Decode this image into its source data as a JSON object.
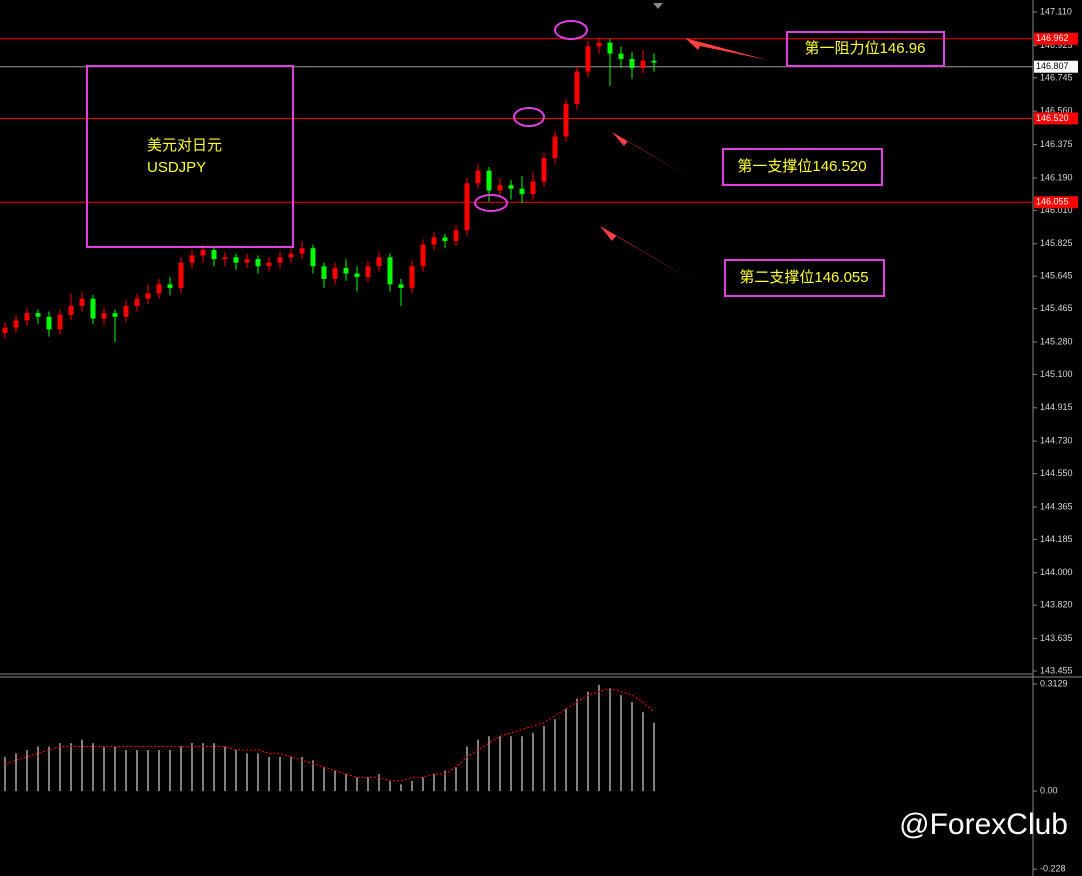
{
  "chart_data": [
    {
      "type": "candlestick",
      "open": [
        145.33,
        145.36,
        145.4,
        145.44,
        145.42,
        145.35,
        145.43,
        145.48,
        145.52,
        145.41,
        145.44,
        145.42,
        145.48,
        145.52,
        145.55,
        145.6,
        145.58,
        145.72,
        145.76,
        145.79,
        145.74,
        145.75,
        145.72,
        145.74,
        145.7,
        145.72,
        145.75,
        145.77,
        145.8,
        145.7,
        145.63,
        145.69,
        145.66,
        145.64,
        145.7,
        145.75,
        145.6,
        145.58,
        145.7,
        145.82,
        145.86,
        145.84,
        145.9,
        146.16,
        146.23,
        146.12,
        146.15,
        146.13,
        146.1,
        146.17,
        146.3,
        146.42,
        146.6,
        146.78,
        146.92,
        146.94,
        146.88,
        146.85,
        146.8,
        146.84
      ],
      "high": [
        145.39,
        145.43,
        145.47,
        145.46,
        145.45,
        145.46,
        145.55,
        145.56,
        145.54,
        145.47,
        145.46,
        145.51,
        145.55,
        145.6,
        145.63,
        145.64,
        145.75,
        145.79,
        145.82,
        145.81,
        145.78,
        145.77,
        145.77,
        145.76,
        145.75,
        145.78,
        145.8,
        145.84,
        145.82,
        145.72,
        145.72,
        145.74,
        145.7,
        145.73,
        145.78,
        145.77,
        145.63,
        145.73,
        145.85,
        145.89,
        145.88,
        145.93,
        146.19,
        146.27,
        146.25,
        146.19,
        146.18,
        146.2,
        146.22,
        146.33,
        146.45,
        146.63,
        146.81,
        146.95,
        146.97,
        146.96,
        146.92,
        146.89,
        146.9,
        146.88
      ],
      "low": [
        145.3,
        145.33,
        145.37,
        145.38,
        145.31,
        145.32,
        145.4,
        145.45,
        145.38,
        145.37,
        145.28,
        145.39,
        145.45,
        145.49,
        145.52,
        145.54,
        145.55,
        145.69,
        145.72,
        145.7,
        145.7,
        145.68,
        145.69,
        145.66,
        145.67,
        145.69,
        145.72,
        145.74,
        145.66,
        145.58,
        145.6,
        145.62,
        145.56,
        145.61,
        145.67,
        145.56,
        145.48,
        145.55,
        145.67,
        145.79,
        145.8,
        145.81,
        145.87,
        146.13,
        146.06,
        146.09,
        146.07,
        146.05,
        146.07,
        146.14,
        146.27,
        146.39,
        146.57,
        146.75,
        146.88,
        146.7,
        146.8,
        146.74,
        146.77,
        146.78
      ],
      "close": [
        145.36,
        145.4,
        145.44,
        145.42,
        145.35,
        145.43,
        145.48,
        145.52,
        145.41,
        145.44,
        145.42,
        145.48,
        145.52,
        145.55,
        145.6,
        145.58,
        145.72,
        145.76,
        145.79,
        145.74,
        145.75,
        145.72,
        145.74,
        145.7,
        145.72,
        145.75,
        145.77,
        145.8,
        145.7,
        145.63,
        145.69,
        145.66,
        145.64,
        145.7,
        145.75,
        145.6,
        145.58,
        145.7,
        145.82,
        145.86,
        145.84,
        145.9,
        146.16,
        146.23,
        146.12,
        146.15,
        146.13,
        146.1,
        146.17,
        146.3,
        146.42,
        146.6,
        146.78,
        146.92,
        146.94,
        146.88,
        146.85,
        146.8,
        146.84,
        146.83
      ],
      "up_color": "#ff0000",
      "down_color": "#00ff00",
      "ylim": [
        143.444,
        147.177
      ],
      "yticks": [
        {
          "value": 147.11,
          "label": "147.110"
        },
        146.925,
        146.745,
        {
          "value": 146.56,
          "label": "146.560"
        },
        146.375,
        {
          "value": 146.19,
          "label": "146.190"
        },
        {
          "value": 146.01,
          "label": "146.010"
        },
        145.825,
        145.645,
        145.465,
        {
          "value": 145.28,
          "label": "145.280"
        },
        {
          "value": 145.1,
          "label": "145.100"
        },
        144.915,
        {
          "value": 144.73,
          "label": "144.730"
        },
        {
          "value": 144.55,
          "label": "144.550"
        },
        144.365,
        144.185,
        {
          "value": 144,
          "label": "144.000"
        },
        {
          "value": 143.82,
          "label": "143.820"
        },
        143.635,
        143.455
      ],
      "levels": [
        {
          "value": 146.962,
          "color": "#ff0000"
        },
        {
          "value": 146.807,
          "color": "#9a9a9a"
        },
        {
          "value": 146.52,
          "label": "146.520",
          "color": "#ff0000"
        },
        {
          "value": 146.055,
          "color": "#ff0000"
        }
      ],
      "annotations": [
        "美元对日元",
        "USDJPY",
        "第一阻力位146.96",
        "第一支撑位146.520",
        "第二支撑位146.055"
      ]
    },
    {
      "type": "macd",
      "values": [
        0.1,
        0.11,
        0.12,
        0.13,
        0.13,
        0.14,
        0.14,
        0.15,
        0.14,
        0.13,
        0.13,
        0.12,
        0.12,
        0.12,
        0.12,
        0.12,
        0.13,
        0.14,
        0.14,
        0.14,
        0.13,
        0.12,
        0.11,
        0.11,
        0.1,
        0.1,
        0.1,
        0.1,
        0.09,
        0.07,
        0.06,
        0.05,
        0.04,
        0.04,
        0.05,
        0.03,
        0.02,
        0.03,
        0.04,
        0.05,
        0.06,
        0.07,
        0.13,
        0.15,
        0.16,
        0.16,
        0.16,
        0.16,
        0.17,
        0.19,
        0.21,
        0.24,
        0.27,
        0.29,
        0.31,
        0.3,
        0.28,
        0.26,
        0.23,
        0.2
      ],
      "signal": [
        0.08,
        0.09,
        0.1,
        0.11,
        0.12,
        0.13,
        0.13,
        0.13,
        0.13,
        0.13,
        0.13,
        0.13,
        0.13,
        0.13,
        0.13,
        0.13,
        0.13,
        0.13,
        0.13,
        0.13,
        0.13,
        0.12,
        0.12,
        0.12,
        0.11,
        0.11,
        0.1,
        0.09,
        0.08,
        0.07,
        0.06,
        0.05,
        0.04,
        0.04,
        0.04,
        0.03,
        0.03,
        0.04,
        0.04,
        0.05,
        0.05,
        0.07,
        0.1,
        0.12,
        0.14,
        0.16,
        0.17,
        0.18,
        0.19,
        0.2,
        0.22,
        0.24,
        0.26,
        0.28,
        0.29,
        0.3,
        0.29,
        0.28,
        0.26,
        0.23
      ],
      "color": "#ffffff",
      "signal_color": "#ff0000",
      "ylim": [
        -0.248,
        0.336
      ],
      "yticks": [
        0.3129,
        {
          "value": 0,
          "label": "0.00"
        },
        -0.228
      ]
    }
  ],
  "watermark": "@ForexClub"
}
